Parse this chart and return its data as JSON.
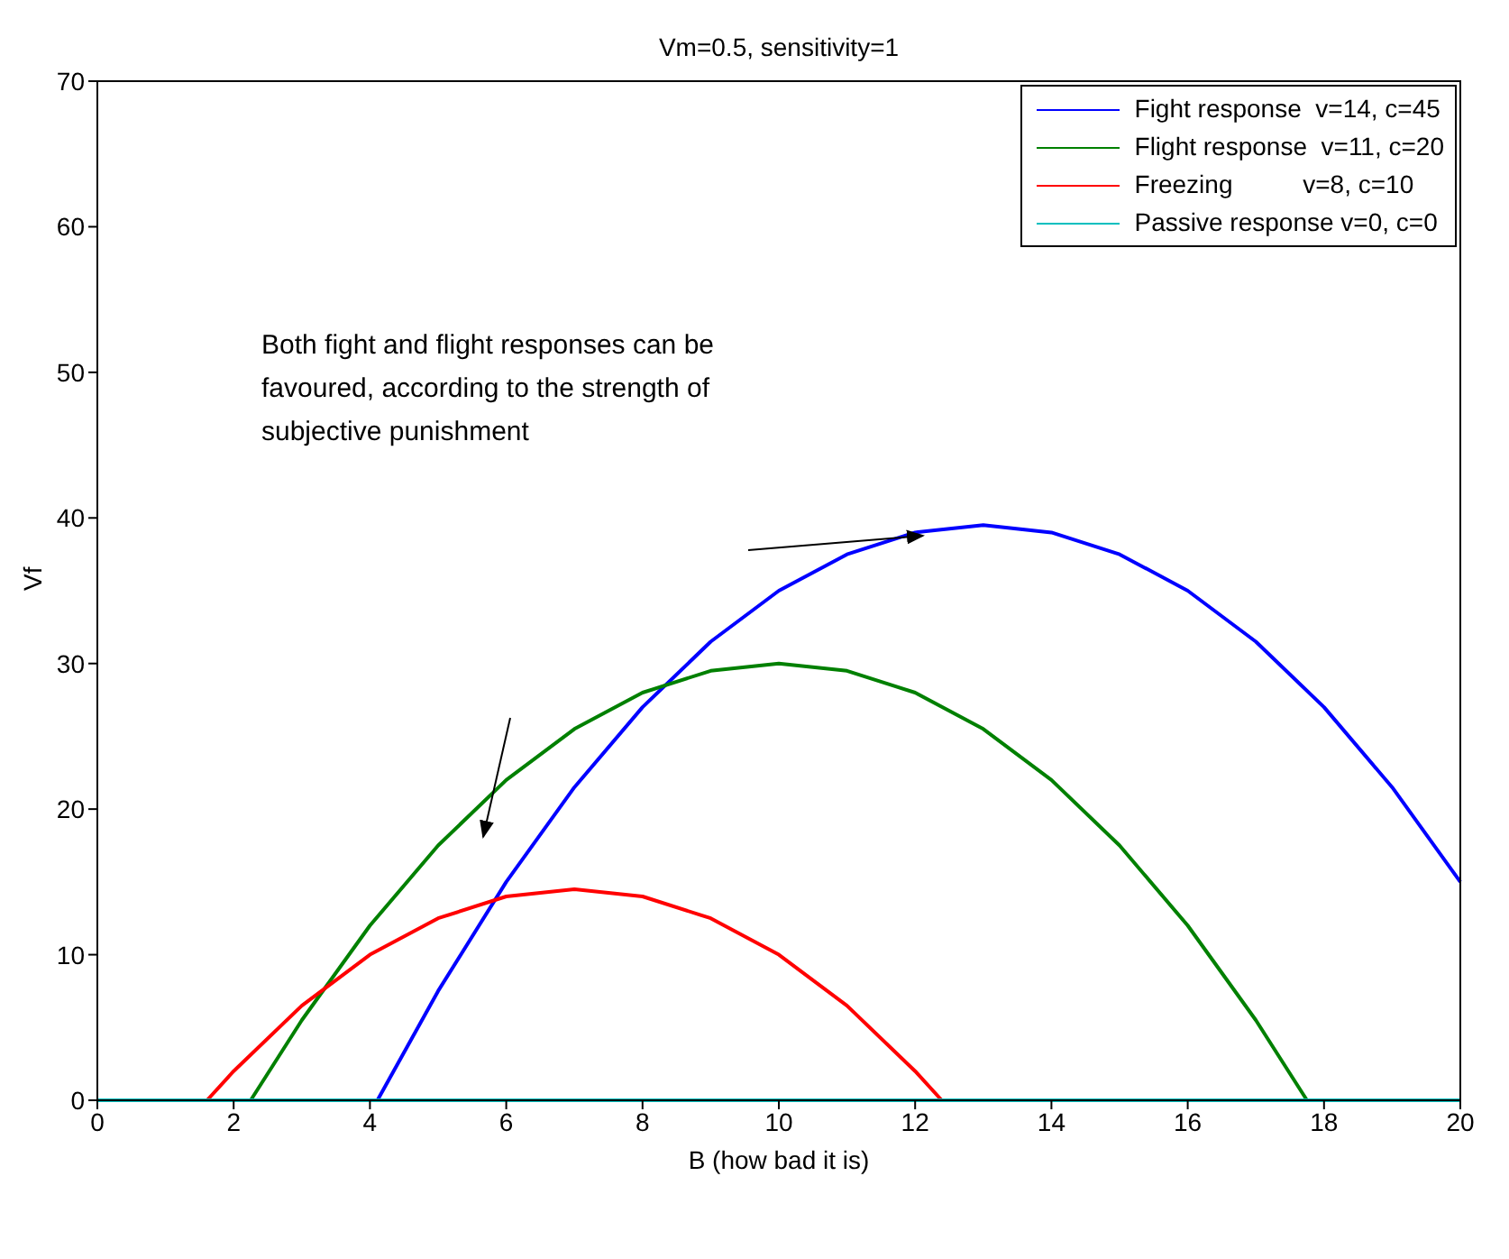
{
  "chart_data": {
    "type": "line",
    "title": "Vm=0.5, sensitivity=1",
    "xlabel": "B (how bad it is)",
    "ylabel": "Vf",
    "xlim": [
      0,
      20
    ],
    "xticks": [
      0,
      2,
      4,
      6,
      8,
      10,
      12,
      14,
      16,
      18,
      20
    ],
    "ylim": [
      0,
      70
    ],
    "yticks": [
      0,
      10,
      20,
      30,
      40,
      50,
      60,
      70
    ],
    "grid": false,
    "legend": "top right",
    "marker": "none",
    "line_style": "solid",
    "annotations": [
      "Both fight and flight responses can be favoured, according to the strength of subjective punishment"
    ],
    "series": [
      {
        "name": "Fight response  v=14, c=45",
        "color": "#0000ff",
        "x": [
          4.11,
          5,
          6,
          7,
          8,
          9,
          10,
          11,
          12,
          13,
          14,
          15,
          16,
          17,
          18,
          19,
          20
        ],
        "values": [
          0,
          7.5,
          15,
          21.5,
          27,
          31.5,
          35,
          37.5,
          39,
          39.5,
          39,
          37.5,
          35,
          31.5,
          27,
          21.5,
          15
        ]
      },
      {
        "name": "Flight response  v=11, c=20",
        "color": "#008000",
        "x": [
          2.25,
          3,
          4,
          5,
          6,
          7,
          8,
          9,
          10,
          11,
          12,
          13,
          14,
          15,
          16,
          17,
          17.75
        ],
        "values": [
          0,
          5.5,
          12,
          17.5,
          22,
          25.5,
          28,
          29.5,
          30,
          29.5,
          28,
          25.5,
          22,
          17.5,
          12,
          5.5,
          0
        ]
      },
      {
        "name": "Freezing          v=8, c=10",
        "color": "#ff0000",
        "x": [
          1.61,
          2,
          3,
          4,
          5,
          6,
          7,
          8,
          9,
          10,
          11,
          12,
          12.39
        ],
        "values": [
          0,
          2,
          6.5,
          10,
          12.5,
          14,
          14.5,
          14,
          12.5,
          10,
          6.5,
          2,
          0
        ]
      },
      {
        "name": "Passive response v=0, c=0",
        "color": "#00bfbf",
        "x": [
          0,
          20
        ],
        "values": [
          0,
          0
        ]
      }
    ]
  }
}
